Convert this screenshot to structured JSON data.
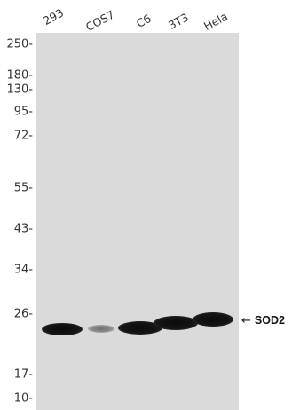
{
  "lanes": [
    "293",
    "COS7",
    "C6",
    "3T3",
    "Hela"
  ],
  "mw_markers": [
    "250-",
    "180-",
    "130-",
    "95-",
    "72-",
    "55-",
    "43-",
    "34-",
    "26-",
    "17-",
    "10-"
  ],
  "target": {
    "arrow": "←",
    "label": "SOD2"
  },
  "colors": {
    "membrane": "#dadada",
    "band": "#111111",
    "faint_band": "#7a7a7a"
  }
}
